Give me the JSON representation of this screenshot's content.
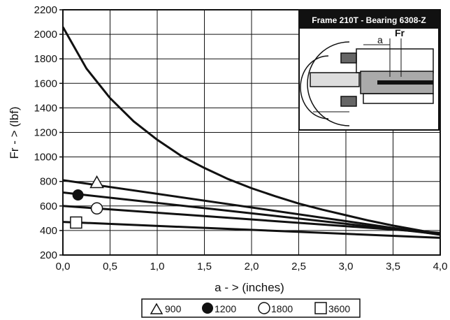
{
  "chart_data": {
    "type": "line",
    "title": "",
    "xlabel": "a - > (inches)",
    "ylabel": "Fr - > (lbf)",
    "xlim": [
      0.0,
      4.0
    ],
    "ylim": [
      200,
      2200
    ],
    "x_ticks": [
      "0,0",
      "0,5",
      "1,0",
      "1,5",
      "2,0",
      "2,5",
      "3,0",
      "3,5",
      "4,0"
    ],
    "y_ticks": [
      "200",
      "400",
      "600",
      "800",
      "1000",
      "1200",
      "1400",
      "1600",
      "1800",
      "2000",
      "2200"
    ],
    "grid": true,
    "series": [
      {
        "name": "900",
        "marker": "triangle",
        "x": [
          0.0,
          4.0
        ],
        "y": [
          810,
          365
        ],
        "marker_at": [
          0.36,
          790
        ]
      },
      {
        "name": "1200",
        "marker": "filled-circle",
        "x": [
          0.0,
          4.0
        ],
        "y": [
          710,
          370
        ],
        "marker_at": [
          0.16,
          690
        ]
      },
      {
        "name": "1800",
        "marker": "circle",
        "x": [
          0.0,
          4.0
        ],
        "y": [
          600,
          380
        ],
        "marker_at": [
          0.36,
          580
        ]
      },
      {
        "name": "3600",
        "marker": "square",
        "x": [
          0.0,
          4.0
        ],
        "y": [
          470,
          340
        ],
        "marker_at": [
          0.14,
          465
        ]
      }
    ],
    "bearing_limit_curve": {
      "x": [
        0.0,
        0.25,
        0.5,
        0.75,
        1.0,
        1.25,
        1.5,
        1.75,
        2.0,
        2.25,
        2.5,
        2.75,
        3.0,
        3.25,
        3.5,
        3.75,
        4.0
      ],
      "y": [
        2060,
        1720,
        1480,
        1290,
        1140,
        1010,
        910,
        820,
        745,
        680,
        620,
        570,
        525,
        480,
        440,
        405,
        370
      ]
    },
    "inset": {
      "title": "Frame 210T - Bearing 6308-Z",
      "labels": [
        "a",
        "Fr"
      ]
    },
    "legend": {
      "position": "bottom",
      "entries": [
        "900",
        "1200",
        "1800",
        "3600"
      ]
    }
  }
}
